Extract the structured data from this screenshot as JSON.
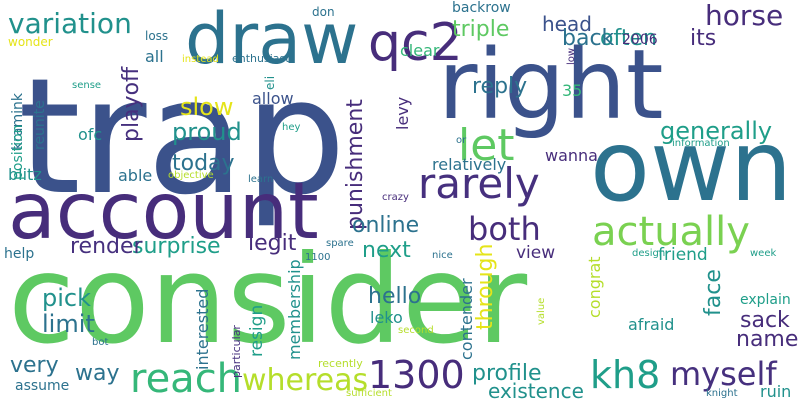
{
  "palette": {
    "navy": "#3b528b",
    "purple": "#472d7b",
    "deep_purple": "#46307e",
    "teal": "#21918c",
    "blue_teal": "#2c728e",
    "green": "#5ec962",
    "lime": "#7ad151",
    "yellow_green": "#b5de2b",
    "yellow": "#e5e419",
    "mint": "#35b779",
    "aqua": "#1f9e89"
  },
  "words": [
    {
      "text": "trap",
      "color": "navy"
    },
    {
      "text": "consider",
      "color": "green"
    },
    {
      "text": "account",
      "color": "purple"
    },
    {
      "text": "right",
      "color": "navy"
    },
    {
      "text": "own",
      "color": "blue_teal"
    },
    {
      "text": "draw",
      "color": "blue_teal"
    },
    {
      "text": "qc2",
      "color": "purple"
    },
    {
      "text": "let",
      "color": "green"
    },
    {
      "text": "rarely",
      "color": "deep_purple"
    },
    {
      "text": "actually",
      "color": "lime"
    },
    {
      "text": "reach",
      "color": "mint"
    },
    {
      "text": "1300",
      "color": "purple"
    },
    {
      "text": "whereas",
      "color": "yellow_green"
    },
    {
      "text": "kh8",
      "color": "aqua"
    },
    {
      "text": "myself",
      "color": "deep_purple"
    },
    {
      "text": "both",
      "color": "purple"
    },
    {
      "text": "horse",
      "color": "purple"
    },
    {
      "text": "variation",
      "color": "teal"
    },
    {
      "text": "generally",
      "color": "aqua"
    },
    {
      "text": "punishment",
      "color": "purple"
    },
    {
      "text": "playoff",
      "color": "deep_purple"
    },
    {
      "text": "proud",
      "color": "teal"
    },
    {
      "text": "slow",
      "color": "yellow"
    },
    {
      "text": "today",
      "color": "blue_teal"
    },
    {
      "text": "surprise",
      "color": "aqua"
    },
    {
      "text": "legit",
      "color": "purple"
    },
    {
      "text": "render",
      "color": "deep_purple"
    },
    {
      "text": "online",
      "color": "blue_teal"
    },
    {
      "text": "next",
      "color": "aqua"
    },
    {
      "text": "pick",
      "color": "teal"
    },
    {
      "text": "limit",
      "color": "blue_teal"
    },
    {
      "text": "hello",
      "color": "blue_teal"
    },
    {
      "text": "through",
      "color": "yellow"
    },
    {
      "text": "face",
      "color": "teal"
    },
    {
      "text": "sack",
      "color": "purple"
    },
    {
      "text": "name",
      "color": "purple"
    },
    {
      "text": "profile",
      "color": "teal"
    },
    {
      "text": "existence",
      "color": "teal"
    },
    {
      "text": "very",
      "color": "blue_teal"
    },
    {
      "text": "way",
      "color": "blue_teal"
    },
    {
      "text": "head",
      "color": "navy"
    },
    {
      "text": "often",
      "color": "teal"
    },
    {
      "text": "its",
      "color": "purple"
    },
    {
      "text": "triple",
      "color": "green"
    },
    {
      "text": "back",
      "color": "blue_teal"
    },
    {
      "text": "reply",
      "color": "blue_teal"
    },
    {
      "text": "friend",
      "color": "aqua"
    },
    {
      "text": "view",
      "color": "purple"
    },
    {
      "text": "congrat",
      "color": "yellow_green"
    },
    {
      "text": "contender",
      "color": "blue_teal"
    },
    {
      "text": "leko",
      "color": "teal"
    },
    {
      "text": "resign",
      "color": "aqua"
    },
    {
      "text": "membership",
      "color": "teal"
    },
    {
      "text": "interested",
      "color": "blue_teal"
    },
    {
      "text": "afraid",
      "color": "teal"
    },
    {
      "text": "explain",
      "color": "aqua"
    },
    {
      "text": "ruin",
      "color": "teal"
    },
    {
      "text": "allow",
      "color": "navy"
    },
    {
      "text": "able",
      "color": "blue_teal"
    },
    {
      "text": "all",
      "color": "blue_teal"
    },
    {
      "text": "levy",
      "color": "purple"
    },
    {
      "text": "wanna",
      "color": "purple"
    },
    {
      "text": "relatively",
      "color": "blue_teal"
    },
    {
      "text": "clear",
      "color": "mint"
    },
    {
      "text": "backrow",
      "color": "blue_teal"
    },
    {
      "text": "2006",
      "color": "purple"
    },
    {
      "text": "35",
      "color": "mint"
    },
    {
      "text": "blitz",
      "color": "teal"
    },
    {
      "text": "ofc",
      "color": "teal"
    },
    {
      "text": "kramink",
      "color": "blue_teal"
    },
    {
      "text": "reunite",
      "color": "blue_teal"
    },
    {
      "text": "position",
      "color": "aqua"
    },
    {
      "text": "help",
      "color": "blue_teal"
    },
    {
      "text": "assume",
      "color": "blue_teal"
    },
    {
      "text": "wonder",
      "color": "yellow"
    },
    {
      "text": "loss",
      "color": "blue_teal"
    },
    {
      "text": "eli",
      "color": "teal"
    },
    {
      "text": "don",
      "color": "blue_teal"
    },
    {
      "text": "instead",
      "color": "yellow"
    },
    {
      "text": "enthusiast",
      "color": "blue_teal"
    },
    {
      "text": "sense",
      "color": "aqua"
    },
    {
      "text": "objective",
      "color": "yellow_green"
    },
    {
      "text": "learn",
      "color": "blue_teal"
    },
    {
      "text": "hey",
      "color": "aqua"
    },
    {
      "text": "or",
      "color": "blue_teal"
    },
    {
      "text": "information",
      "color": "aqua"
    },
    {
      "text": "crazy",
      "color": "purple"
    },
    {
      "text": "spare",
      "color": "blue_teal"
    },
    {
      "text": "1100",
      "color": "blue_teal"
    },
    {
      "text": "nice",
      "color": "blue_teal"
    },
    {
      "text": "design",
      "color": "aqua"
    },
    {
      "text": "week",
      "color": "aqua"
    },
    {
      "text": "value",
      "color": "yellow_green"
    },
    {
      "text": "second",
      "color": "yellow_green"
    },
    {
      "text": "particular",
      "color": "deep_purple"
    },
    {
      "text": "recently",
      "color": "yellow_green"
    },
    {
      "text": "sufficient",
      "color": "yellow_green"
    },
    {
      "text": "bot",
      "color": "blue_teal"
    },
    {
      "text": "knight",
      "color": "blue_teal"
    },
    {
      "text": "low",
      "color": "purple"
    }
  ]
}
